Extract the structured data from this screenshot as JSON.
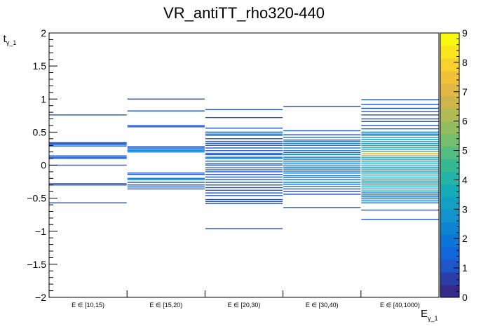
{
  "chart_data": {
    "type": "heatmap",
    "title": "VR_antiTT_rho320-440",
    "xlabel": "E",
    "xlabel_sub": "γ_1",
    "ylabel": "t",
    "ylabel_sub": "γ_1",
    "categories": [
      "E ∈ [10,15)",
      "E ∈ [15,20)",
      "E ∈ [20,30)",
      "E ∈ [30,40)",
      "E ∈ [40,1000)"
    ],
    "ylim": [
      -2,
      2
    ],
    "yticks": [
      -2,
      -1.5,
      -1,
      -0.5,
      0,
      0.5,
      1,
      1.5,
      2
    ],
    "ytick_labels": [
      "−2",
      "−1.5",
      "−1",
      "−0.5",
      "0",
      "0.5",
      "1",
      "1.5",
      "2"
    ],
    "zlim": [
      0,
      9
    ],
    "zticks": [
      "0",
      "1",
      "2",
      "3",
      "4",
      "5",
      "6",
      "7",
      "8",
      "9"
    ],
    "palette": [
      "#352a87",
      "#2a3ea6",
      "#1f56c8",
      "#1166db",
      "#0a76da",
      "#0e85d3",
      "#1393ce",
      "#12a0c5",
      "#15abb8",
      "#23b3a7",
      "#35b993",
      "#53bc80",
      "#74be6e",
      "#94bd5f",
      "#b1bb54",
      "#ccb64b",
      "#e2b845",
      "#f2c13a",
      "#f8d12c",
      "#f9e41e",
      "#f9f911"
    ],
    "bins": [
      {
        "x": 0,
        "entries": [
          [
            0.76,
            1
          ],
          [
            0.34,
            1
          ],
          [
            0.33,
            1
          ],
          [
            0.31,
            1
          ],
          [
            0.29,
            1
          ],
          [
            0.14,
            1
          ],
          [
            0.12,
            1
          ],
          [
            0.1,
            1
          ],
          [
            0.0,
            1
          ],
          [
            -0.28,
            1
          ],
          [
            -0.3,
            1
          ],
          [
            -0.57,
            1
          ]
        ]
      },
      {
        "x": 1,
        "entries": [
          [
            1.0,
            1
          ],
          [
            0.82,
            1
          ],
          [
            0.6,
            1
          ],
          [
            0.58,
            1
          ],
          [
            0.28,
            1
          ],
          [
            0.26,
            1
          ],
          [
            0.24,
            2
          ],
          [
            0.22,
            2
          ],
          [
            0.2,
            2
          ],
          [
            -0.12,
            1
          ],
          [
            -0.14,
            1
          ],
          [
            -0.2,
            2
          ],
          [
            -0.22,
            2
          ],
          [
            -0.26,
            1
          ],
          [
            -0.3,
            1
          ],
          [
            -0.33,
            1
          ],
          [
            -0.36,
            1
          ]
        ]
      },
      {
        "x": 2,
        "entries": [
          [
            0.84,
            1
          ],
          [
            0.72,
            1
          ],
          [
            0.56,
            1
          ],
          [
            0.5,
            1
          ],
          [
            0.47,
            2
          ],
          [
            0.45,
            2
          ],
          [
            0.4,
            1
          ],
          [
            0.36,
            1
          ],
          [
            0.33,
            1
          ],
          [
            0.3,
            1
          ],
          [
            0.26,
            1
          ],
          [
            0.22,
            1
          ],
          [
            0.18,
            1
          ],
          [
            0.16,
            1
          ],
          [
            0.12,
            2
          ],
          [
            0.1,
            2
          ],
          [
            0.06,
            2
          ],
          [
            0.02,
            2
          ],
          [
            0.0,
            1
          ],
          [
            -0.04,
            1
          ],
          [
            -0.07,
            1
          ],
          [
            -0.1,
            1
          ],
          [
            -0.14,
            1
          ],
          [
            -0.18,
            1
          ],
          [
            -0.22,
            1
          ],
          [
            -0.26,
            1
          ],
          [
            -0.3,
            1
          ],
          [
            -0.34,
            1
          ],
          [
            -0.38,
            1
          ],
          [
            -0.42,
            1
          ],
          [
            -0.46,
            1
          ],
          [
            -0.52,
            1
          ],
          [
            -0.55,
            1
          ],
          [
            -0.58,
            1
          ],
          [
            -0.96,
            1
          ]
        ]
      },
      {
        "x": 3,
        "entries": [
          [
            0.89,
            1
          ],
          [
            0.52,
            1
          ],
          [
            0.46,
            1
          ],
          [
            0.42,
            2
          ],
          [
            0.38,
            2
          ],
          [
            0.36,
            2
          ],
          [
            0.33,
            2
          ],
          [
            0.3,
            2
          ],
          [
            0.26,
            2
          ],
          [
            0.22,
            2
          ],
          [
            0.19,
            2
          ],
          [
            0.16,
            2
          ],
          [
            0.12,
            2
          ],
          [
            0.09,
            2
          ],
          [
            0.06,
            2
          ],
          [
            0.03,
            2
          ],
          [
            0.0,
            2
          ],
          [
            -0.03,
            2
          ],
          [
            -0.06,
            2
          ],
          [
            -0.09,
            2
          ],
          [
            -0.12,
            2
          ],
          [
            -0.16,
            2
          ],
          [
            -0.19,
            2
          ],
          [
            -0.22,
            2
          ],
          [
            -0.26,
            2
          ],
          [
            -0.29,
            2
          ],
          [
            -0.32,
            2
          ],
          [
            -0.36,
            1
          ],
          [
            -0.4,
            1
          ],
          [
            -0.44,
            1
          ],
          [
            -0.64,
            1
          ]
        ]
      },
      {
        "x": 4,
        "entries": [
          [
            0.99,
            1
          ],
          [
            0.92,
            1
          ],
          [
            0.86,
            1
          ],
          [
            0.81,
            1
          ],
          [
            0.76,
            1
          ],
          [
            0.7,
            1
          ],
          [
            0.66,
            1
          ],
          [
            0.6,
            1
          ],
          [
            0.55,
            2
          ],
          [
            0.5,
            2
          ],
          [
            0.47,
            2
          ],
          [
            0.45,
            3
          ],
          [
            0.42,
            3
          ],
          [
            0.39,
            3
          ],
          [
            0.36,
            3
          ],
          [
            0.33,
            3
          ],
          [
            0.3,
            3
          ],
          [
            0.27,
            3
          ],
          [
            0.24,
            3
          ],
          [
            0.21,
            4
          ],
          [
            0.18,
            7
          ],
          [
            0.15,
            6
          ],
          [
            0.12,
            4
          ],
          [
            0.09,
            3
          ],
          [
            0.06,
            3
          ],
          [
            0.03,
            3
          ],
          [
            0.0,
            3
          ],
          [
            -0.03,
            3
          ],
          [
            -0.06,
            3
          ],
          [
            -0.09,
            3
          ],
          [
            -0.12,
            3
          ],
          [
            -0.15,
            3
          ],
          [
            -0.18,
            4
          ],
          [
            -0.21,
            3
          ],
          [
            -0.24,
            3
          ],
          [
            -0.27,
            3
          ],
          [
            -0.3,
            3
          ],
          [
            -0.33,
            3
          ],
          [
            -0.36,
            3
          ],
          [
            -0.39,
            3
          ],
          [
            -0.42,
            2
          ],
          [
            -0.45,
            2
          ],
          [
            -0.48,
            2
          ],
          [
            -0.51,
            2
          ],
          [
            -0.54,
            2
          ],
          [
            -0.57,
            2
          ],
          [
            -0.68,
            1
          ],
          [
            -0.82,
            1
          ]
        ]
      }
    ]
  }
}
